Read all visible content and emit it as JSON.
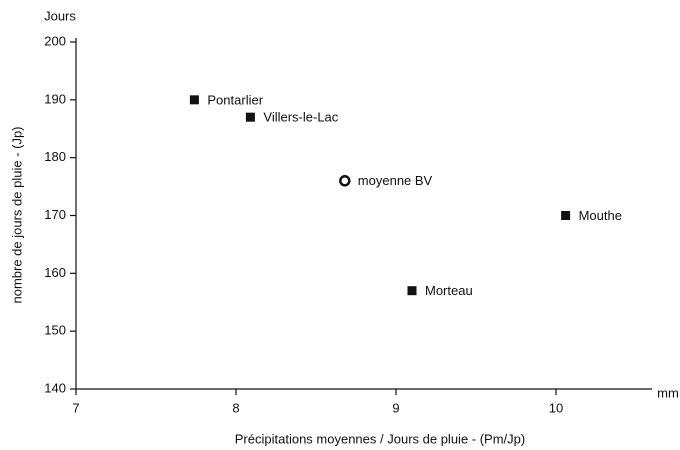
{
  "chart_data": {
    "type": "scatter",
    "x_unit": "mm",
    "y_unit": "Jours",
    "xlabel": "Précipitations moyennes / Jours de pluie   -  (Pm/Jp)",
    "ylabel": "nombre de jours de pluie   -   (Jp)",
    "xlim": [
      7,
      10.6
    ],
    "xticks": [
      7,
      8,
      9,
      10
    ],
    "ylim": [
      140,
      200
    ],
    "yticks": [
      140,
      150,
      160,
      170,
      180,
      190,
      200
    ],
    "grid": false,
    "color": "#111111",
    "points": [
      {
        "label": "Pontarlier",
        "x": 7.74,
        "y": 190,
        "marker": "square"
      },
      {
        "label": "Villers-le-Lac",
        "x": 8.09,
        "y": 187,
        "marker": "square"
      },
      {
        "label": "moyenne BV",
        "x": 8.68,
        "y": 176,
        "marker": "circle"
      },
      {
        "label": "Mouthe",
        "x": 10.06,
        "y": 170,
        "marker": "square"
      },
      {
        "label": "Morteau",
        "x": 9.1,
        "y": 157,
        "marker": "square"
      }
    ]
  }
}
